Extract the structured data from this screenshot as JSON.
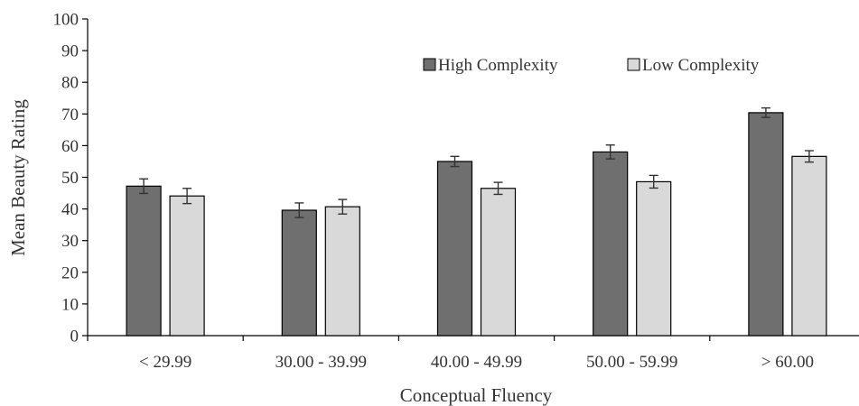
{
  "chart_data": {
    "type": "bar",
    "xlabel": "Conceptual Fluency",
    "ylabel": "Mean Beauty Rating",
    "categories": [
      "< 29.99",
      "30.00 - 39.99",
      "40.00 - 49.99",
      "50.00 - 59.99",
      "> 60.00"
    ],
    "ylim": [
      0,
      100
    ],
    "yticks": [
      0,
      10,
      20,
      30,
      40,
      50,
      60,
      70,
      80,
      90,
      100
    ],
    "series": [
      {
        "name": "High Complexity",
        "color": "#6f6f6f",
        "values": [
          47.2,
          39.6,
          55.0,
          58.0,
          70.4
        ],
        "errors": [
          2.3,
          2.3,
          1.6,
          2.2,
          1.5
        ]
      },
      {
        "name": "Low Complexity",
        "color": "#d9d9d9",
        "values": [
          44.1,
          40.7,
          46.5,
          48.6,
          56.6
        ],
        "errors": [
          2.4,
          2.3,
          1.9,
          2.0,
          1.8
        ]
      }
    ],
    "legend_position": "top-right",
    "grid": false
  }
}
